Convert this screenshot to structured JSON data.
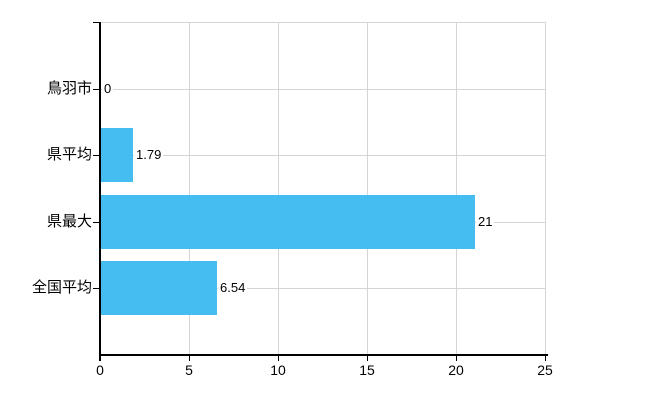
{
  "chart_data": {
    "type": "bar",
    "orientation": "horizontal",
    "title": "",
    "xlabel": "",
    "ylabel": "",
    "categories": [
      "鳥羽市",
      "県平均",
      "県最大",
      "全国平均"
    ],
    "values": [
      0,
      1.79,
      21,
      6.54
    ],
    "value_labels": [
      "0",
      "1.79",
      "21",
      "6.54"
    ],
    "xlim": [
      0,
      25
    ],
    "xticks": [
      0,
      5,
      10,
      15,
      20,
      25
    ],
    "xtick_labels": [
      "0",
      "5",
      "10",
      "15",
      "20",
      "25"
    ],
    "grid": true,
    "legend": false,
    "colors": {
      "bar": "#45BDF1",
      "axis": "#000000",
      "grid": "#D5D5D5",
      "text": "#000000",
      "background": "#ffffff"
    }
  }
}
